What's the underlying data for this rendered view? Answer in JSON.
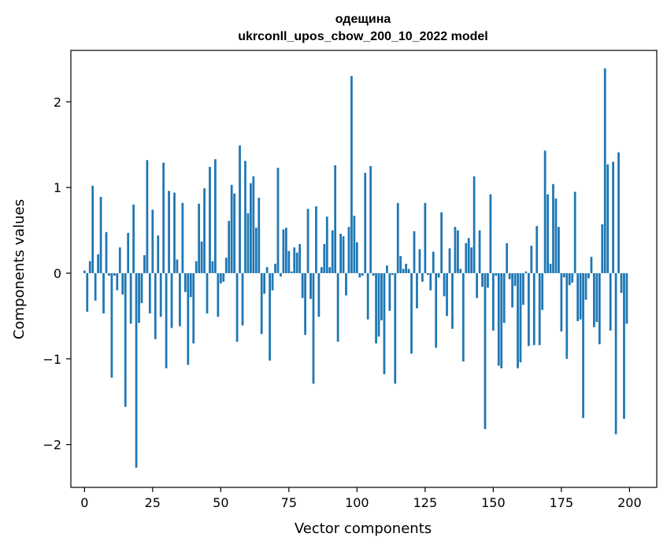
{
  "chart_data": {
    "type": "bar",
    "title": "одещина",
    "subtitle": "ukrconll_upos_cbow_200_10_2022 model",
    "xlabel": "Vector components",
    "ylabel": "Components values",
    "xlim": [
      -5,
      210
    ],
    "ylim": [
      -2.5,
      2.6
    ],
    "xticks": [
      0,
      25,
      50,
      75,
      100,
      125,
      150,
      175,
      200
    ],
    "yticks": [
      -2,
      -1,
      0,
      1,
      2
    ],
    "xtick_labels": [
      "0",
      "25",
      "50",
      "75",
      "100",
      "125",
      "150",
      "175",
      "200"
    ],
    "ytick_labels": [
      "−2",
      "−1",
      "0",
      "1",
      "2"
    ],
    "bar_color": "#1f77b4",
    "grid": false,
    "x": [
      0,
      1,
      2,
      3,
      4,
      5,
      6,
      7,
      8,
      9,
      10,
      11,
      12,
      13,
      14,
      15,
      16,
      17,
      18,
      19,
      20,
      21,
      22,
      23,
      24,
      25,
      26,
      27,
      28,
      29,
      30,
      31,
      32,
      33,
      34,
      35,
      36,
      37,
      38,
      39,
      40,
      41,
      42,
      43,
      44,
      45,
      46,
      47,
      48,
      49,
      50,
      51,
      52,
      53,
      54,
      55,
      56,
      57,
      58,
      59,
      60,
      61,
      62,
      63,
      64,
      65,
      66,
      67,
      68,
      69,
      70,
      71,
      72,
      73,
      74,
      75,
      76,
      77,
      78,
      79,
      80,
      81,
      82,
      83,
      84,
      85,
      86,
      87,
      88,
      89,
      90,
      91,
      92,
      93,
      94,
      95,
      96,
      97,
      98,
      99,
      100,
      101,
      102,
      103,
      104,
      105,
      106,
      107,
      108,
      109,
      110,
      111,
      112,
      113,
      114,
      115,
      116,
      117,
      118,
      119,
      120,
      121,
      122,
      123,
      124,
      125,
      126,
      127,
      128,
      129,
      130,
      131,
      132,
      133,
      134,
      135,
      136,
      137,
      138,
      139,
      140,
      141,
      142,
      143,
      144,
      145,
      146,
      147,
      148,
      149,
      150,
      151,
      152,
      153,
      154,
      155,
      156,
      157,
      158,
      159,
      160,
      161,
      162,
      163,
      164,
      165,
      166,
      167,
      168,
      169,
      170,
      171,
      172,
      173,
      174,
      175,
      176,
      177,
      178,
      179,
      180,
      181,
      182,
      183,
      184,
      185,
      186,
      187,
      188,
      189,
      190,
      191,
      192,
      193,
      194,
      195,
      196,
      197,
      198,
      199
    ],
    "values": [
      0.03,
      -0.45,
      0.14,
      1.02,
      -0.32,
      0.22,
      0.89,
      -0.47,
      0.48,
      -0.03,
      -1.22,
      -0.03,
      -0.2,
      0.3,
      -0.25,
      -1.56,
      0.47,
      -0.59,
      0.8,
      -2.27,
      -0.58,
      -0.35,
      0.21,
      1.32,
      -0.47,
      0.74,
      -0.77,
      0.44,
      -0.51,
      1.29,
      -1.11,
      0.96,
      -0.64,
      0.94,
      0.16,
      -0.62,
      0.82,
      -0.22,
      -1.07,
      -0.28,
      -0.82,
      0.14,
      0.81,
      0.37,
      0.99,
      -0.47,
      1.24,
      0.14,
      1.33,
      -0.51,
      -0.12,
      -0.1,
      0.18,
      0.61,
      1.03,
      0.93,
      -0.8,
      1.49,
      -0.61,
      1.31,
      0.7,
      1.05,
      1.13,
      0.53,
      0.88,
      -0.71,
      -0.24,
      0.07,
      -1.02,
      -0.2,
      0.11,
      1.23,
      -0.04,
      0.51,
      0.53,
      0.26,
      0.02,
      0.3,
      0.24,
      0.34,
      -0.29,
      -0.72,
      0.75,
      -0.3,
      -1.29,
      0.78,
      -0.51,
      0.07,
      0.34,
      0.66,
      0.07,
      0.5,
      1.26,
      -0.8,
      0.46,
      0.43,
      -0.26,
      0.54,
      2.3,
      0.67,
      0.36,
      -0.05,
      -0.03,
      1.17,
      -0.54,
      1.25,
      -0.03,
      -0.82,
      -0.74,
      -0.55,
      -1.18,
      0.09,
      -0.44,
      -0.02,
      -1.29,
      0.82,
      0.2,
      0.05,
      0.11,
      0.05,
      -0.94,
      0.49,
      -0.41,
      0.28,
      -0.1,
      0.82,
      -0.02,
      -0.2,
      0.25,
      -0.87,
      -0.05,
      0.71,
      -0.27,
      -0.5,
      0.29,
      -0.65,
      0.54,
      0.5,
      0.05,
      -1.03,
      0.35,
      0.41,
      0.3,
      1.13,
      -0.29,
      0.5,
      -0.16,
      -1.82,
      -0.17,
      0.92,
      -0.67,
      -0.03,
      -1.08,
      -1.11,
      -0.58,
      0.35,
      -0.07,
      -0.4,
      -0.15,
      -1.11,
      -1.04,
      -0.37,
      0.02,
      -0.85,
      0.32,
      -0.84,
      0.55,
      -0.84,
      -0.43,
      1.43,
      0.92,
      0.11,
      1.04,
      0.87,
      0.54,
      -0.68,
      -0.05,
      -1.0,
      -0.14,
      -0.11,
      0.95,
      -0.56,
      -0.54,
      -1.69,
      -0.31,
      -0.06,
      0.19,
      -0.63,
      -0.57,
      -0.83,
      0.57,
      2.39,
      1.27,
      -0.67,
      1.3,
      -1.88,
      1.41,
      -0.23,
      -1.7,
      -0.59
    ]
  }
}
